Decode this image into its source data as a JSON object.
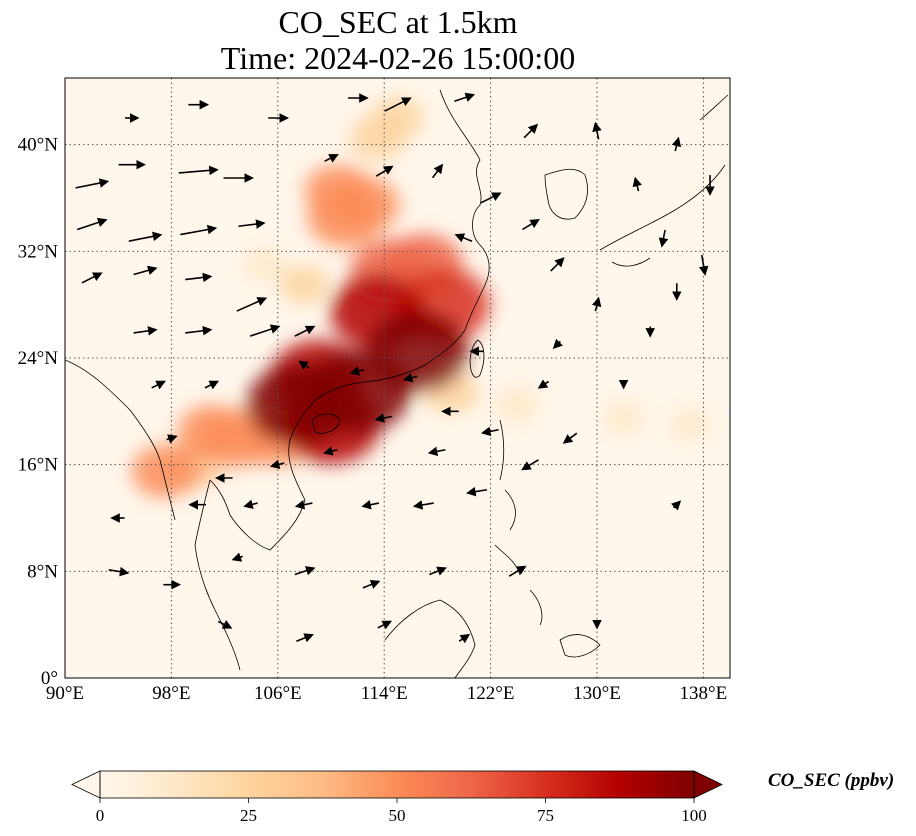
{
  "title": {
    "line1": "CO_SEC at 1.5km",
    "line2": "Time: 2024-02-26 15:00:00"
  },
  "map": {
    "lon_range": [
      90,
      140
    ],
    "lat_range": [
      0,
      45
    ],
    "lon_ticks": [
      {
        "value": 90,
        "label": "90°E"
      },
      {
        "value": 98,
        "label": "98°E"
      },
      {
        "value": 106,
        "label": "106°E"
      },
      {
        "value": 114,
        "label": "114°E"
      },
      {
        "value": 122,
        "label": "122°E"
      },
      {
        "value": 130,
        "label": "130°E"
      },
      {
        "value": 138,
        "label": "138°E"
      }
    ],
    "lat_ticks": [
      {
        "value": 0,
        "label": "0°"
      },
      {
        "value": 8,
        "label": "8°N"
      },
      {
        "value": 16,
        "label": "16°N"
      },
      {
        "value": 24,
        "label": "24°N"
      },
      {
        "value": 32,
        "label": "32°N"
      },
      {
        "value": 40,
        "label": "40°N"
      }
    ],
    "gridlines": "dotted",
    "coastlines": true,
    "overlay": "wind-vector-arrows"
  },
  "colorbar": {
    "label": "CO_SEC (ppbv)",
    "colormap": "OrRd",
    "ticks": [
      {
        "value": 0,
        "label": "0"
      },
      {
        "value": 25,
        "label": "25"
      },
      {
        "value": 50,
        "label": "50"
      },
      {
        "value": 75,
        "label": "75"
      },
      {
        "value": 100,
        "label": "100"
      }
    ],
    "range": [
      0,
      100
    ],
    "extend": "both",
    "colors": [
      "#fff7ec",
      "#fee8c8",
      "#fdd49e",
      "#fdbb84",
      "#fc8d59",
      "#ef6548",
      "#d7301f",
      "#b30000",
      "#7f0000"
    ]
  },
  "plumes": [
    {
      "lon": 112.0,
      "lat": 21.5,
      "value": 100
    },
    {
      "lon": 116.5,
      "lat": 24.5,
      "value": 95
    },
    {
      "lon": 113.5,
      "lat": 27.5,
      "value": 85
    },
    {
      "lon": 118.5,
      "lat": 28.0,
      "value": 80
    },
    {
      "lon": 107.5,
      "lat": 20.5,
      "value": 95
    },
    {
      "lon": 110.0,
      "lat": 19.0,
      "value": 90
    },
    {
      "lon": 109.0,
      "lat": 22.5,
      "value": 85
    },
    {
      "lon": 114.5,
      "lat": 30.5,
      "value": 65
    },
    {
      "lon": 117.0,
      "lat": 31.0,
      "value": 60
    },
    {
      "lon": 111.0,
      "lat": 34.5,
      "value": 55
    },
    {
      "lon": 112.5,
      "lat": 35.5,
      "value": 50
    },
    {
      "lon": 110.5,
      "lat": 36.5,
      "value": 45
    },
    {
      "lon": 113.5,
      "lat": 40.5,
      "value": 30
    },
    {
      "lon": 115.0,
      "lat": 42.0,
      "value": 25
    },
    {
      "lon": 103.0,
      "lat": 18.0,
      "value": 55
    },
    {
      "lon": 101.0,
      "lat": 18.5,
      "value": 45
    },
    {
      "lon": 97.5,
      "lat": 15.5,
      "value": 45
    },
    {
      "lon": 99.5,
      "lat": 16.0,
      "value": 35
    },
    {
      "lon": 106.0,
      "lat": 18.0,
      "value": 50
    },
    {
      "lon": 119.0,
      "lat": 21.5,
      "value": 30
    },
    {
      "lon": 124.0,
      "lat": 20.5,
      "value": 15
    },
    {
      "lon": 132.0,
      "lat": 19.5,
      "value": 12
    },
    {
      "lon": 137.0,
      "lat": 19.0,
      "value": 10
    },
    {
      "lon": 108.0,
      "lat": 29.5,
      "value": 20
    },
    {
      "lon": 105.0,
      "lat": 31.0,
      "value": 12
    }
  ],
  "wind_vectors": [
    {
      "lon": 92,
      "lat": 37,
      "u": 10,
      "v": 2
    },
    {
      "lon": 95,
      "lat": 38.5,
      "u": 8,
      "v": 0
    },
    {
      "lon": 100,
      "lat": 38,
      "u": 12,
      "v": 1
    },
    {
      "lon": 103,
      "lat": 37.5,
      "u": 9,
      "v": 0
    },
    {
      "lon": 92,
      "lat": 34,
      "u": 9,
      "v": 3
    },
    {
      "lon": 96,
      "lat": 33,
      "u": 10,
      "v": 2
    },
    {
      "lon": 100,
      "lat": 33.5,
      "u": 11,
      "v": 2
    },
    {
      "lon": 104,
      "lat": 34,
      "u": 8,
      "v": 1
    },
    {
      "lon": 92,
      "lat": 30,
      "u": 6,
      "v": 3
    },
    {
      "lon": 96,
      "lat": 30.5,
      "u": 7,
      "v": 2
    },
    {
      "lon": 100,
      "lat": 30,
      "u": 8,
      "v": 1
    },
    {
      "lon": 104,
      "lat": 28,
      "u": 9,
      "v": 4
    },
    {
      "lon": 96,
      "lat": 26,
      "u": 7,
      "v": 1
    },
    {
      "lon": 100,
      "lat": 26,
      "u": 8,
      "v": 1
    },
    {
      "lon": 105,
      "lat": 26,
      "u": 9,
      "v": 3
    },
    {
      "lon": 108,
      "lat": 26,
      "u": 6,
      "v": 3
    },
    {
      "lon": 97,
      "lat": 22,
      "u": 4,
      "v": 2
    },
    {
      "lon": 101,
      "lat": 22,
      "u": 4,
      "v": 2
    },
    {
      "lon": 108,
      "lat": 23.5,
      "u": -3,
      "v": 2
    },
    {
      "lon": 112,
      "lat": 23,
      "u": -4,
      "v": -1
    },
    {
      "lon": 116,
      "lat": 22.5,
      "u": -4,
      "v": -1
    },
    {
      "lon": 119,
      "lat": 20,
      "u": -5,
      "v": 0
    },
    {
      "lon": 114,
      "lat": 19.5,
      "u": -5,
      "v": -1
    },
    {
      "lon": 110,
      "lat": 17,
      "u": -4,
      "v": -1
    },
    {
      "lon": 104,
      "lat": 13,
      "u": -4,
      "v": -1
    },
    {
      "lon": 100,
      "lat": 13,
      "u": -5,
      "v": 0
    },
    {
      "lon": 94,
      "lat": 12,
      "u": -4,
      "v": 0
    },
    {
      "lon": 108,
      "lat": 13,
      "u": -5,
      "v": -1
    },
    {
      "lon": 113,
      "lat": 13,
      "u": -5,
      "v": -1
    },
    {
      "lon": 117,
      "lat": 13,
      "u": -6,
      "v": -1
    },
    {
      "lon": 121,
      "lat": 14,
      "u": -6,
      "v": -1
    },
    {
      "lon": 125,
      "lat": 16,
      "u": -5,
      "v": -3
    },
    {
      "lon": 128,
      "lat": 18,
      "u": -4,
      "v": -3
    },
    {
      "lon": 94,
      "lat": 8,
      "u": 6,
      "v": -1
    },
    {
      "lon": 98,
      "lat": 7,
      "u": 5,
      "v": 0
    },
    {
      "lon": 103,
      "lat": 9,
      "u": -3,
      "v": -1
    },
    {
      "lon": 108,
      "lat": 8,
      "u": 6,
      "v": 2
    },
    {
      "lon": 113,
      "lat": 7,
      "u": 5,
      "v": 2
    },
    {
      "lon": 118,
      "lat": 8,
      "u": 5,
      "v": 2
    },
    {
      "lon": 124,
      "lat": 8,
      "u": 5,
      "v": 3
    },
    {
      "lon": 102,
      "lat": 4,
      "u": 4,
      "v": -2
    },
    {
      "lon": 108,
      "lat": 3,
      "u": 5,
      "v": 2
    },
    {
      "lon": 114,
      "lat": 4,
      "u": 4,
      "v": 2
    },
    {
      "lon": 120,
      "lat": 3,
      "u": 3,
      "v": 2
    },
    {
      "lon": 130,
      "lat": 4,
      "u": 0,
      "v": -2
    },
    {
      "lon": 136,
      "lat": 13,
      "u": 2,
      "v": 2
    },
    {
      "lon": 132,
      "lat": 22,
      "u": 0,
      "v": -2
    },
    {
      "lon": 134,
      "lat": 26,
      "u": 0,
      "v": -3
    },
    {
      "lon": 136,
      "lat": 29,
      "u": 0,
      "v": -5
    },
    {
      "lon": 138,
      "lat": 31,
      "u": 1,
      "v": -6
    },
    {
      "lon": 130,
      "lat": 28,
      "u": 1,
      "v": 4
    },
    {
      "lon": 127,
      "lat": 31,
      "u": 4,
      "v": 4
    },
    {
      "lon": 125,
      "lat": 34,
      "u": 5,
      "v": 3
    },
    {
      "lon": 133,
      "lat": 37,
      "u": -1,
      "v": 4
    },
    {
      "lon": 130,
      "lat": 41,
      "u": -1,
      "v": 5
    },
    {
      "lon": 136,
      "lat": 40,
      "u": 1,
      "v": 4
    },
    {
      "lon": 138.5,
      "lat": 37,
      "u": 0,
      "v": -6
    },
    {
      "lon": 135,
      "lat": 33,
      "u": -1,
      "v": -5
    },
    {
      "lon": 120,
      "lat": 33,
      "u": -5,
      "v": 2
    },
    {
      "lon": 122,
      "lat": 36,
      "u": 6,
      "v": 3
    },
    {
      "lon": 118,
      "lat": 38,
      "u": 3,
      "v": 4
    },
    {
      "lon": 114,
      "lat": 38,
      "u": 5,
      "v": 3
    },
    {
      "lon": 110,
      "lat": 39,
      "u": 4,
      "v": 2
    },
    {
      "lon": 115,
      "lat": 43,
      "u": 8,
      "v": 4
    },
    {
      "lon": 120,
      "lat": 43.5,
      "u": 6,
      "v": 2
    },
    {
      "lon": 125,
      "lat": 41,
      "u": 4,
      "v": 4
    },
    {
      "lon": 112,
      "lat": 43.5,
      "u": 6,
      "v": 0
    },
    {
      "lon": 106,
      "lat": 42,
      "u": 6,
      "v": 0
    },
    {
      "lon": 100,
      "lat": 43,
      "u": 6,
      "v": 0
    },
    {
      "lon": 95,
      "lat": 42,
      "u": 4,
      "v": 0
    },
    {
      "lon": 121,
      "lat": 24.5,
      "u": -4,
      "v": 0
    },
    {
      "lon": 118,
      "lat": 17,
      "u": -5,
      "v": -1
    },
    {
      "lon": 122,
      "lat": 18.5,
      "u": -5,
      "v": -1
    },
    {
      "lon": 126,
      "lat": 22,
      "u": -3,
      "v": -2
    },
    {
      "lon": 127,
      "lat": 25,
      "u": -2,
      "v": -2
    },
    {
      "lon": 98,
      "lat": 18,
      "u": 3,
      "v": 1
    },
    {
      "lon": 102,
      "lat": 15,
      "u": -5,
      "v": 0
    },
    {
      "lon": 106,
      "lat": 16,
      "u": -4,
      "v": -1
    }
  ]
}
